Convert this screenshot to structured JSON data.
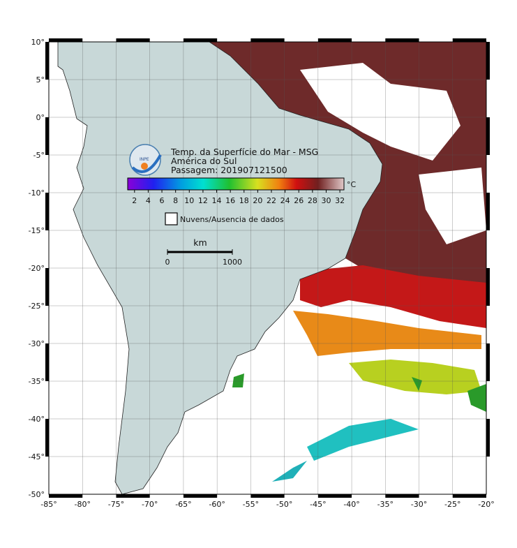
{
  "map": {
    "title": "Temp. da Superfície do Mar - MSG",
    "subtitle": "América do Sul",
    "pass": "Passagem: 201907121500",
    "logo": "INPE",
    "colorbar": {
      "unit": "°C",
      "lim": [
        1,
        32.6
      ],
      "ticks": [
        2,
        4,
        6,
        8,
        10,
        12,
        14,
        16,
        18,
        20,
        22,
        24,
        26,
        28,
        30,
        32
      ]
    },
    "legend": "Nuvens/Ausencia de dados",
    "scale_bar": {
      "unit": "km",
      "ticks": [
        0,
        1000
      ]
    },
    "xlim": [
      -85,
      -20
    ],
    "ylim": [
      -50,
      10
    ],
    "xticks": [
      {
        "value": -85,
        "label": "-85°"
      },
      {
        "value": -80,
        "label": "-80°"
      },
      {
        "value": -75,
        "label": "-75°"
      },
      {
        "value": -70,
        "label": "-70°"
      },
      {
        "value": -65,
        "label": "-65°"
      },
      {
        "value": -60,
        "label": "-60°"
      },
      {
        "value": -55,
        "label": "-55°"
      },
      {
        "value": -50,
        "label": "-50°"
      },
      {
        "value": -45,
        "label": "-45°"
      },
      {
        "value": -40,
        "label": "-40°"
      },
      {
        "value": -35,
        "label": "-35°"
      },
      {
        "value": -30,
        "label": "-30°"
      },
      {
        "value": -25,
        "label": "-25°"
      },
      {
        "value": -20,
        "label": "-20°"
      }
    ],
    "yticks": [
      {
        "value": 10,
        "label": "10°"
      },
      {
        "value": 5,
        "label": "5°"
      },
      {
        "value": 0,
        "label": "0°"
      },
      {
        "value": -5,
        "label": "-5°"
      },
      {
        "value": -10,
        "label": "-10°"
      },
      {
        "value": -15,
        "label": "-15°"
      },
      {
        "value": -20,
        "label": "-20°"
      },
      {
        "value": -25,
        "label": "-25°"
      },
      {
        "value": -30,
        "label": "-30°"
      },
      {
        "value": -35,
        "label": "-35°"
      },
      {
        "value": -40,
        "label": "-40°"
      },
      {
        "value": -45,
        "label": "-45°"
      },
      {
        "value": -50,
        "label": "-50°"
      }
    ]
  }
}
